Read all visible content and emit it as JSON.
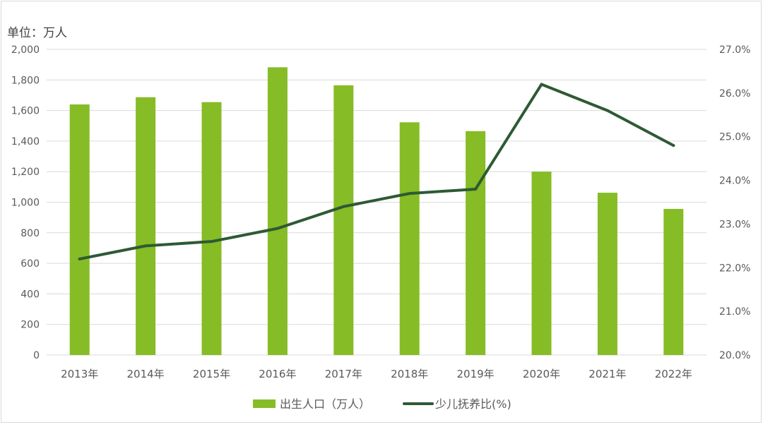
{
  "chart_data": {
    "type": "bar",
    "unit_label": "单位：万人",
    "categories": [
      "2013年",
      "2014年",
      "2015年",
      "2016年",
      "2017年",
      "2018年",
      "2019年",
      "2020年",
      "2021年",
      "2022年"
    ],
    "series": [
      {
        "name": "出生人口（万人）",
        "type": "bar",
        "axis": "left",
        "color": "#86bc25",
        "values": [
          1640,
          1687,
          1655,
          1883,
          1765,
          1523,
          1465,
          1200,
          1062,
          956
        ]
      },
      {
        "name": "少儿抚养比(%)",
        "type": "line",
        "axis": "right",
        "color": "#2e5a34",
        "values": [
          22.2,
          22.5,
          22.6,
          22.9,
          23.4,
          23.7,
          23.8,
          26.2,
          25.6,
          24.8
        ]
      }
    ],
    "y_left": {
      "min": 0,
      "max": 2000,
      "ticks": [
        0,
        200,
        400,
        600,
        800,
        1000,
        1200,
        1400,
        1600,
        1800,
        2000
      ],
      "tick_labels": [
        "0",
        "200",
        "400",
        "600",
        "800",
        "1,000",
        "1,200",
        "1,400",
        "1,600",
        "1,800",
        "2,000"
      ]
    },
    "y_right": {
      "min": 20,
      "max": 27,
      "ticks": [
        20,
        21,
        22,
        23,
        24,
        25,
        26,
        27
      ],
      "tick_labels": [
        "20.0%",
        "21.0%",
        "22.0%",
        "23.0%",
        "24.0%",
        "25.0%",
        "26.0%",
        "27.0%"
      ]
    },
    "grid": true,
    "legend_position": "bottom",
    "gridline_color": "#d9d9d9",
    "text_color": "#595959"
  }
}
